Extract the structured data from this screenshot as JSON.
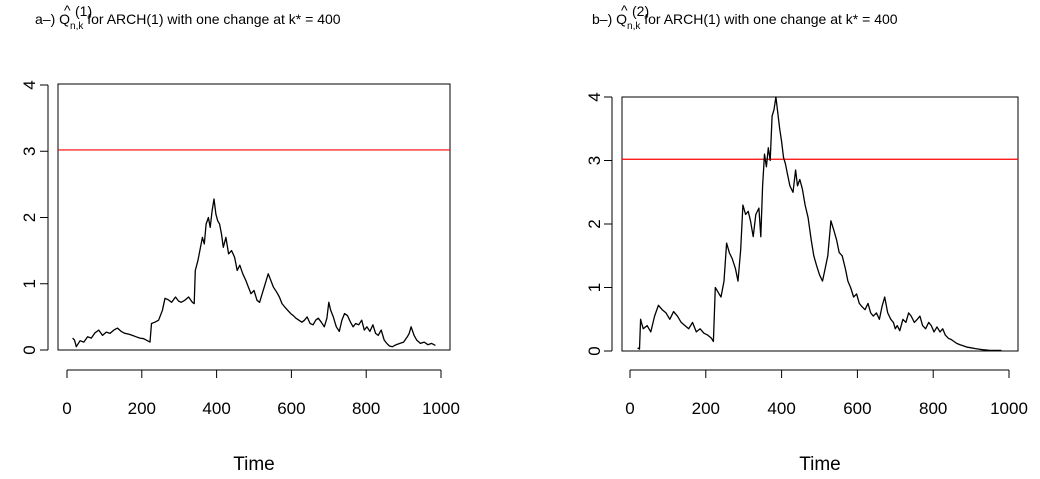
{
  "chart_data": [
    {
      "type": "line",
      "title_prefix": "a–) ",
      "title_symbol": "Q",
      "title_hat": "^",
      "title_superscript": "(1)",
      "title_subscript": "n,k",
      "title_suffix": "  for ARCH(1) with one change at k* = 400",
      "xlabel": "Time",
      "ylabel": "",
      "xlim": [
        0,
        1000
      ],
      "ylim": [
        0,
        4
      ],
      "xticks": [
        "0",
        "200",
        "400",
        "600",
        "800",
        "1000"
      ],
      "yticks": [
        "0",
        "1",
        "2",
        "3",
        "4"
      ],
      "line_color": "#000000",
      "threshold": 3.02,
      "threshold_color": "#ff0000",
      "series": [
        {
          "x": [
            15,
            20,
            25,
            35,
            45,
            55,
            65,
            75,
            85,
            95,
            105,
            115,
            125,
            135,
            145,
            155,
            165,
            175,
            185,
            195,
            205,
            215,
            222,
            226,
            235,
            245,
            255,
            262,
            270,
            280,
            290,
            298,
            305,
            315,
            325,
            335,
            340,
            343,
            350,
            357,
            362,
            367,
            372,
            378,
            383,
            388,
            393,
            398,
            403,
            408,
            413,
            418,
            425,
            432,
            440,
            448,
            455,
            462,
            470,
            478,
            485,
            492,
            500,
            508,
            515,
            522,
            530,
            538,
            545,
            552,
            560,
            568,
            575,
            582,
            590,
            598,
            605,
            612,
            620,
            628,
            635,
            642,
            650,
            658,
            665,
            672,
            680,
            688,
            695,
            700,
            705,
            712,
            720,
            728,
            735,
            742,
            750,
            758,
            765,
            772,
            780,
            788,
            795,
            802,
            810,
            818,
            825,
            832,
            840,
            848,
            855,
            862,
            870,
            880,
            890,
            900,
            910,
            915,
            920,
            928,
            935,
            945,
            955,
            965,
            975,
            985
          ],
          "y": [
            0.18,
            0.15,
            0.05,
            0.14,
            0.12,
            0.2,
            0.18,
            0.26,
            0.3,
            0.22,
            0.27,
            0.25,
            0.3,
            0.33,
            0.28,
            0.25,
            0.24,
            0.22,
            0.2,
            0.18,
            0.17,
            0.14,
            0.12,
            0.4,
            0.42,
            0.45,
            0.6,
            0.78,
            0.76,
            0.72,
            0.8,
            0.74,
            0.72,
            0.75,
            0.8,
            0.72,
            0.7,
            1.2,
            1.35,
            1.55,
            1.7,
            1.6,
            1.9,
            2.0,
            1.85,
            2.1,
            2.28,
            2.05,
            1.95,
            1.9,
            1.75,
            1.55,
            1.7,
            1.45,
            1.5,
            1.4,
            1.2,
            1.28,
            1.15,
            1.05,
            0.95,
            0.85,
            0.9,
            0.75,
            0.72,
            0.85,
            1.0,
            1.15,
            1.05,
            0.95,
            0.88,
            0.8,
            0.7,
            0.65,
            0.6,
            0.55,
            0.52,
            0.48,
            0.45,
            0.42,
            0.45,
            0.5,
            0.4,
            0.38,
            0.45,
            0.48,
            0.42,
            0.35,
            0.48,
            0.72,
            0.6,
            0.5,
            0.35,
            0.28,
            0.45,
            0.55,
            0.52,
            0.42,
            0.35,
            0.4,
            0.38,
            0.45,
            0.3,
            0.35,
            0.28,
            0.38,
            0.25,
            0.22,
            0.3,
            0.15,
            0.1,
            0.06,
            0.05,
            0.08,
            0.1,
            0.12,
            0.2,
            0.25,
            0.35,
            0.22,
            0.15,
            0.1,
            0.12,
            0.08,
            0.1,
            0.07
          ]
        }
      ]
    },
    {
      "type": "line",
      "title_prefix": "b–) ",
      "title_symbol": "Q",
      "title_hat": "^",
      "title_superscript": "(2)",
      "title_subscript": "n,k",
      "title_suffix": "  for ARCH(1) with one change at k* = 400",
      "xlabel": "Time",
      "ylabel": "",
      "xlim": [
        0,
        1000
      ],
      "ylim": [
        0,
        4
      ],
      "xticks": [
        "0",
        "200",
        "400",
        "600",
        "800",
        "1000"
      ],
      "yticks": [
        "0",
        "1",
        "2",
        "3",
        "4"
      ],
      "line_color": "#000000",
      "threshold": 3.02,
      "threshold_color": "#ff0000",
      "series": [
        {
          "x": [
            20,
            25,
            28,
            30,
            35,
            45,
            55,
            65,
            75,
            85,
            95,
            105,
            115,
            125,
            135,
            145,
            155,
            165,
            175,
            185,
            195,
            205,
            215,
            220,
            225,
            230,
            235,
            240,
            248,
            255,
            262,
            270,
            278,
            285,
            292,
            298,
            305,
            312,
            318,
            325,
            332,
            340,
            345,
            350,
            355,
            360,
            365,
            370,
            375,
            380,
            385,
            390,
            395,
            400,
            405,
            410,
            415,
            422,
            430,
            437,
            442,
            448,
            455,
            462,
            470,
            478,
            485,
            492,
            500,
            508,
            515,
            522,
            530,
            538,
            545,
            552,
            560,
            568,
            575,
            582,
            590,
            598,
            605,
            612,
            620,
            628,
            635,
            642,
            650,
            658,
            665,
            672,
            680,
            688,
            695,
            700,
            705,
            712,
            720,
            728,
            735,
            742,
            750,
            758,
            765,
            772,
            780,
            788,
            795,
            802,
            810,
            818,
            825,
            832,
            840,
            848,
            855,
            862,
            870,
            880,
            890,
            900,
            910,
            920,
            930,
            940,
            950,
            960,
            970,
            980
          ],
          "y": [
            0.05,
            0.03,
            0.5,
            0.45,
            0.35,
            0.4,
            0.3,
            0.55,
            0.72,
            0.65,
            0.6,
            0.5,
            0.62,
            0.55,
            0.45,
            0.4,
            0.35,
            0.45,
            0.3,
            0.35,
            0.28,
            0.25,
            0.2,
            0.15,
            1.0,
            0.95,
            0.9,
            0.85,
            1.1,
            1.7,
            1.55,
            1.45,
            1.3,
            1.1,
            1.6,
            2.3,
            2.15,
            2.2,
            2.05,
            1.8,
            2.15,
            2.25,
            1.8,
            2.6,
            3.1,
            2.9,
            3.2,
            3.0,
            3.7,
            3.8,
            4.0,
            3.75,
            3.5,
            3.3,
            3.05,
            2.95,
            2.8,
            2.6,
            2.5,
            2.85,
            2.6,
            2.7,
            2.55,
            2.3,
            2.1,
            1.75,
            1.5,
            1.35,
            1.2,
            1.1,
            1.3,
            1.5,
            2.05,
            1.9,
            1.75,
            1.55,
            1.5,
            1.3,
            1.1,
            1.0,
            0.85,
            0.9,
            0.75,
            0.7,
            0.65,
            0.75,
            0.6,
            0.55,
            0.6,
            0.5,
            0.7,
            0.85,
            0.6,
            0.5,
            0.45,
            0.35,
            0.4,
            0.32,
            0.5,
            0.45,
            0.6,
            0.55,
            0.45,
            0.5,
            0.55,
            0.4,
            0.35,
            0.45,
            0.4,
            0.3,
            0.38,
            0.3,
            0.35,
            0.25,
            0.2,
            0.18,
            0.15,
            0.12,
            0.1,
            0.08,
            0.06,
            0.05,
            0.04,
            0.03,
            0.02,
            0.015,
            0.01,
            0.01,
            0.01,
            0.01
          ]
        }
      ]
    }
  ]
}
